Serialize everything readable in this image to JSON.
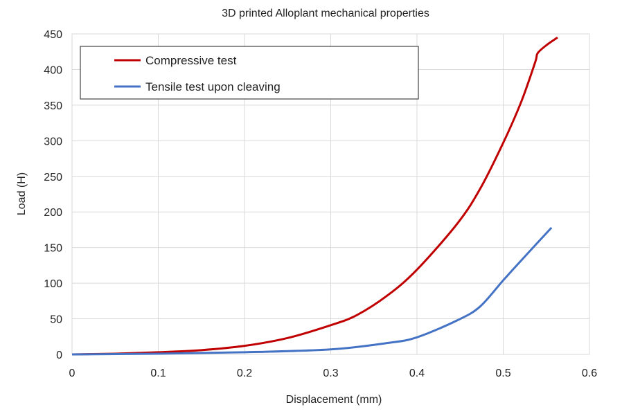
{
  "chart_data": {
    "type": "line",
    "title": "3D printed Alloplant mechanical properties",
    "xlabel": "Displacement (mm)",
    "ylabel": "Load (H)",
    "xlim": [
      0,
      0.6
    ],
    "ylim": [
      0,
      450
    ],
    "xticks": [
      "0",
      "0.1",
      "0.2",
      "0.3",
      "0.4",
      "0.5",
      "0.6"
    ],
    "yticks": [
      "0",
      "50",
      "100",
      "150",
      "200",
      "250",
      "300",
      "350",
      "400",
      "450"
    ],
    "grid": true,
    "legend_position": "top-left",
    "series": [
      {
        "name": "Compressive test",
        "color": "#c00000",
        "x": [
          0,
          0.05,
          0.1,
          0.15,
          0.2,
          0.25,
          0.3,
          0.33,
          0.366,
          0.4,
          0.447,
          0.473,
          0.5,
          0.521,
          0.537,
          0.54,
          0.551,
          0.563
        ],
        "y": [
          0,
          1,
          3,
          6,
          12,
          23,
          41,
          55,
          83,
          119,
          184,
          232,
          297,
          355,
          410,
          423,
          435,
          445
        ]
      },
      {
        "name": "Tensile test upon cleaving",
        "color": "#4472c4",
        "x": [
          0,
          0.1,
          0.2,
          0.3,
          0.366,
          0.4,
          0.447,
          0.473,
          0.5,
          0.527,
          0.556
        ],
        "y": [
          0,
          1,
          3,
          7,
          16,
          24,
          48,
          67,
          104,
          140,
          178
        ]
      }
    ]
  }
}
